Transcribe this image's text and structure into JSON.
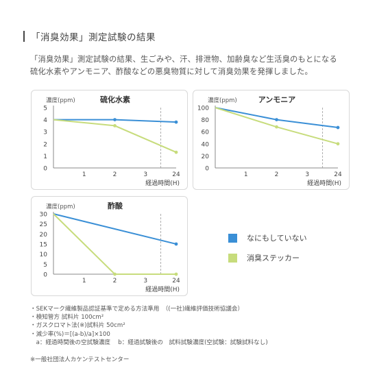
{
  "heading": "「消臭効果」測定試験の結果",
  "description": [
    "「消臭効果」測定試験の結果、生ごみや、汗、排泄物、加齢臭など生活臭のもとになる",
    "硫化水素やアンモニア、酢酸などの悪臭物質に対して消臭効果を発揮しました。"
  ],
  "legend": [
    {
      "label": "なにもしていない",
      "color": "#3a8fd6"
    },
    {
      "label": "消臭ステッカー",
      "color": "#c7dc7c"
    }
  ],
  "notes": [
    "・SEKマーク繊維製品認証基準で定める方法準用　（(一社)繊維評価技術協議会）",
    "・検知管方 試料片 100cm²",
    "・ガスクロマト法(※)試料片 50cm²",
    "・減少率(%)＝[(a-b)/a]×100",
    "　a：経過時間後の空試験濃度　 b：経過試験後の　試料試験濃度(空試験：試験試料なし)"
  ],
  "source": "※一般社団法人カケンテストセンター",
  "chart_data": [
    {
      "type": "line",
      "title": "硫化水素",
      "ylabel": "濃度(ppm)",
      "xlabel": "経過時間(H)",
      "categories": [
        "0",
        "1",
        "2",
        "3",
        "24"
      ],
      "x_ticks": [
        "1",
        "2",
        "3",
        "24"
      ],
      "ylim": [
        0,
        5
      ],
      "y_ticks": [
        0,
        1,
        2,
        3,
        4,
        5
      ],
      "series": [
        {
          "name": "なにもしていない",
          "color": "#3a8fd6",
          "points": [
            {
              "x": "0",
              "y": 4.0
            },
            {
              "x": "2",
              "y": 4.0
            },
            {
              "x": "24",
              "y": 3.8
            }
          ]
        },
        {
          "name": "消臭ステッカー",
          "color": "#c7dc7c",
          "points": [
            {
              "x": "0",
              "y": 4.0
            },
            {
              "x": "2",
              "y": 3.5
            },
            {
              "x": "24",
              "y": 1.3
            }
          ]
        }
      ]
    },
    {
      "type": "line",
      "title": "アンモニア",
      "ylabel": "濃度(ppm)",
      "xlabel": "経過時間(H)",
      "categories": [
        "0",
        "1",
        "2",
        "3",
        "24"
      ],
      "x_ticks": [
        "1",
        "2",
        "3",
        "24"
      ],
      "ylim": [
        0,
        100
      ],
      "y_ticks": [
        0,
        20,
        40,
        60,
        80,
        100
      ],
      "series": [
        {
          "name": "なにもしていない",
          "color": "#3a8fd6",
          "points": [
            {
              "x": "0",
              "y": 100
            },
            {
              "x": "2",
              "y": 80
            },
            {
              "x": "24",
              "y": 67
            }
          ]
        },
        {
          "name": "消臭ステッカー",
          "color": "#c7dc7c",
          "points": [
            {
              "x": "0",
              "y": 100
            },
            {
              "x": "2",
              "y": 68
            },
            {
              "x": "24",
              "y": 40
            }
          ]
        }
      ]
    },
    {
      "type": "line",
      "title": "酢酸",
      "ylabel": "濃度(ppm)",
      "xlabel": "経過時間(H)",
      "categories": [
        "0",
        "1",
        "2",
        "3",
        "24"
      ],
      "x_ticks": [
        "1",
        "2",
        "3",
        "24"
      ],
      "ylim": [
        0,
        30
      ],
      "y_ticks": [
        0,
        5,
        10,
        15,
        20,
        25,
        30
      ],
      "series": [
        {
          "name": "なにもしていない",
          "color": "#3a8fd6",
          "points": [
            {
              "x": "0",
              "y": 30
            },
            {
              "x": "24",
              "y": 15
            }
          ]
        },
        {
          "name": "消臭ステッカー",
          "color": "#c7dc7c",
          "points": [
            {
              "x": "0",
              "y": 30
            },
            {
              "x": "2",
              "y": 0
            },
            {
              "x": "24",
              "y": 0
            }
          ]
        }
      ]
    }
  ]
}
